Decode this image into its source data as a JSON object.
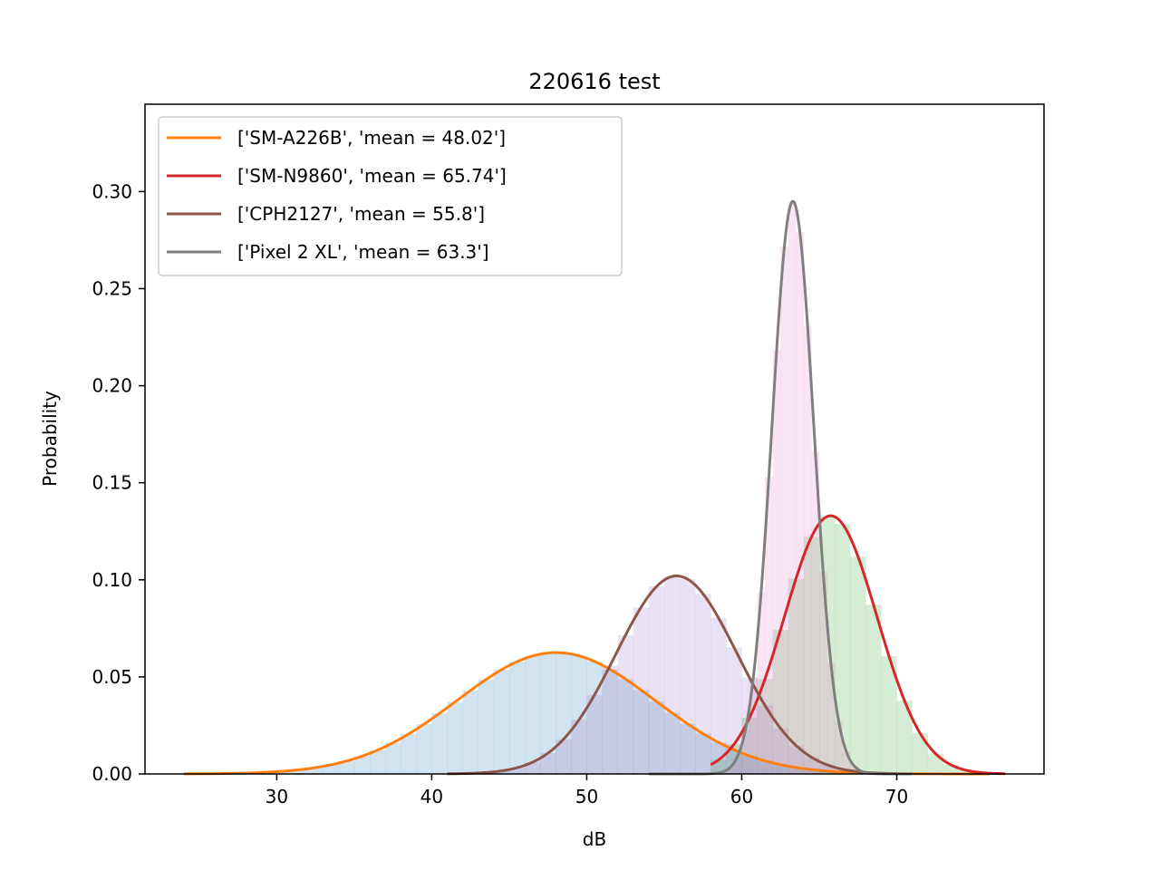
{
  "chart_data": {
    "type": "area",
    "title": "220616 test",
    "xlabel": "dB",
    "ylabel": "Probability",
    "xlim": [
      21.5,
      79.5
    ],
    "ylim": [
      0,
      0.345
    ],
    "xticks": [
      30,
      40,
      50,
      60,
      70
    ],
    "yticks": [
      0.0,
      0.05,
      0.1,
      0.15,
      0.2,
      0.25,
      0.3
    ],
    "ytick_labels": [
      "0.00",
      "0.05",
      "0.10",
      "0.15",
      "0.20",
      "0.25",
      "0.30"
    ],
    "legend_position": "upper-left",
    "grid": false,
    "series": [
      {
        "name": "['SM-A226B', 'mean = 48.02']",
        "mean": 48.02,
        "peak": 0.0625,
        "line_color": "#ff7f0e",
        "hist_color": "#1f77b4",
        "range": [
          24,
          76
        ]
      },
      {
        "name": "['SM-N9860', 'mean = 65.74']",
        "mean": 65.74,
        "peak": 0.133,
        "line_color": "#d62728",
        "hist_color": "#2ca02c",
        "range": [
          58,
          77
        ]
      },
      {
        "name": "['CPH2127', 'mean = 55.8']",
        "mean": 55.8,
        "peak": 0.102,
        "line_color": "#8c564b",
        "hist_color": "#9467bd",
        "range": [
          41,
          70
        ]
      },
      {
        "name": "['Pixel 2 XL', 'mean = 63.3']",
        "mean": 63.3,
        "peak": 0.295,
        "line_color": "#7f7f7f",
        "hist_color": "#e377c2",
        "range": [
          54,
          71
        ]
      }
    ]
  }
}
